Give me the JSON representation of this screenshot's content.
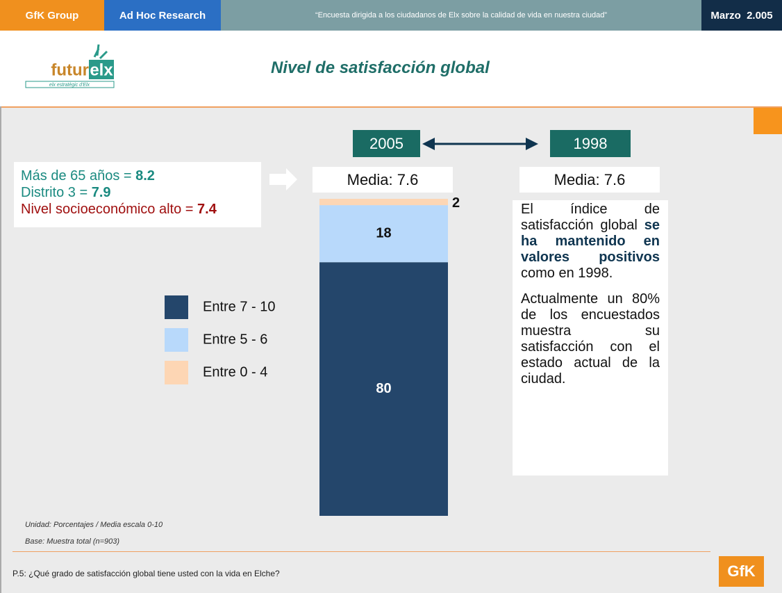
{
  "header": {
    "company": "GfK Group",
    "unit": "Ad Hoc Research",
    "survey": "“Encuesta dirigida a los ciudadanos de Elx sobre la calidad de vida en nuestra ciudad”",
    "date": "Marzo  2.005"
  },
  "logo": {
    "word": "futur",
    "mark": "elx",
    "tagline": "elx estratègic d'Elx"
  },
  "chart_data": {
    "type": "bar",
    "stacked": true,
    "title": "Nivel de satisfacción global",
    "categories": [
      "2005"
    ],
    "series": [
      {
        "name": "Entre 7 - 10",
        "color": "#24466b",
        "values": [
          80
        ]
      },
      {
        "name": "Entre 5 - 6",
        "color": "#b8d9fb",
        "values": [
          18
        ]
      },
      {
        "name": "Entre 0 - 4",
        "color": "#fdd6b4",
        "values": [
          2
        ]
      }
    ],
    "ylim": [
      0,
      100
    ],
    "legend": "left"
  },
  "comparison": {
    "years": [
      "2005",
      "1998"
    ],
    "means": [
      "Media: 7.6",
      "Media: 7.6"
    ]
  },
  "highlights": [
    {
      "label": "Más de 65 años = ",
      "value": "8.2"
    },
    {
      "label": "Distrito 3 = ",
      "value": "7.9"
    },
    {
      "label": "Nivel socioeconómico alto = ",
      "value": "7.4"
    }
  ],
  "note": {
    "paragraphs": [
      [
        "El índice de satisfacción global ",
        "se ha mantenido en valores positivos",
        " como en 1998."
      ],
      [
        "Actualmente un 80% de los encuestados muestra su satisfacción con el estado actual de la ciudad."
      ]
    ]
  },
  "footer": {
    "unit": "Unidad: Porcentajes / Media escala 0-10",
    "base": "Base: Muestra total (n=903)",
    "question": "P.5: ¿Qué grado de satisfacción global tiene usted con la vida en Elche?",
    "brand": "GfK"
  }
}
